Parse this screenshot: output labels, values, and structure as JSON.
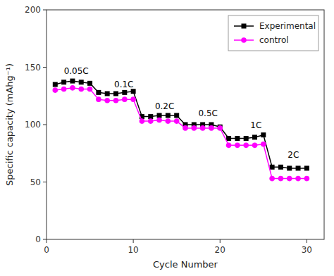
{
  "chart_data": {
    "type": "line",
    "x_label": "Cycle Number",
    "y_label": "Specific capacity (mAhg⁻¹)",
    "x": [
      1,
      2,
      3,
      4,
      5,
      6,
      7,
      8,
      9,
      10,
      11,
      12,
      13,
      14,
      15,
      16,
      17,
      18,
      19,
      20,
      21,
      22,
      23,
      24,
      25,
      26,
      27,
      28,
      29,
      30
    ],
    "series": [
      {
        "name": "Experimental",
        "color": "#000000",
        "marker": "square",
        "values": [
          135,
          137,
          138,
          137,
          136,
          128,
          127,
          127,
          128,
          129,
          107,
          107,
          108,
          108,
          108,
          100,
          100,
          100,
          100,
          98,
          88,
          88,
          88,
          89,
          91,
          63,
          63,
          62,
          62,
          62
        ]
      },
      {
        "name": "control",
        "color": "#ff00ff",
        "marker": "circle",
        "values": [
          130,
          131,
          132,
          131,
          131,
          122,
          121,
          121,
          122,
          122,
          103,
          103,
          104,
          103,
          103,
          97,
          97,
          97,
          97,
          97,
          82,
          82,
          82,
          82,
          83,
          53,
          53,
          53,
          53,
          53
        ]
      }
    ],
    "xlim": [
      0,
      32
    ],
    "ylim": [
      0,
      200
    ],
    "xticks": [
      0,
      10,
      20,
      30
    ],
    "yticks": [
      0,
      50,
      100,
      150,
      200
    ],
    "annotations": [
      {
        "text": "0.05C",
        "x": 2.0,
        "y": 143
      },
      {
        "text": "0.1C",
        "x": 7.8,
        "y": 131
      },
      {
        "text": "0.2C",
        "x": 12.5,
        "y": 112
      },
      {
        "text": "0.5C",
        "x": 17.5,
        "y": 106
      },
      {
        "text": "1C",
        "x": 23.5,
        "y": 96
      },
      {
        "text": "2C",
        "x": 27.8,
        "y": 70
      }
    ],
    "legend": "upper right",
    "grid": false
  }
}
